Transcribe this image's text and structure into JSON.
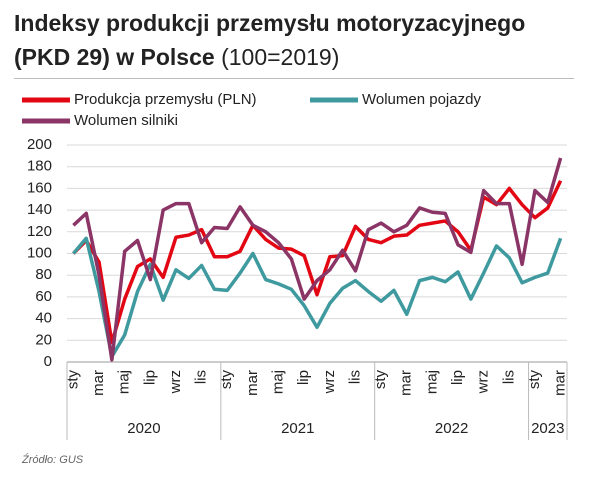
{
  "chart_data": {
    "type": "line",
    "title": "Indeksy produkcji przemysłu motoryzacyjnego (PKD 29) w Polsce",
    "title_note": "(100=2019)",
    "source": "Źródło: GUS",
    "categories": [
      "sty",
      null,
      "mar",
      null,
      "maj",
      null,
      "lip",
      null,
      "wrz",
      null,
      "lis",
      null,
      "sty",
      null,
      "mar",
      null,
      "maj",
      null,
      "lip",
      null,
      "wrz",
      null,
      "lis",
      null,
      "sty",
      null,
      "mar",
      null,
      "maj",
      null,
      "lip",
      null,
      "wrz",
      null,
      "lis",
      null,
      "sty",
      null,
      "mar"
    ],
    "years": [
      "2020",
      "2021",
      "2022",
      "2023"
    ],
    "ylim": [
      0,
      200
    ],
    "yticks": [
      0,
      20,
      40,
      60,
      80,
      100,
      120,
      140,
      160,
      180,
      200
    ],
    "grid": true,
    "series": [
      {
        "name": "Produkcja przemysłu (PLN)",
        "color": "#e30613",
        "values": [
          100,
          112,
          92,
          18,
          58,
          88,
          95,
          78,
          115,
          117,
          122,
          97,
          97,
          102,
          126,
          113,
          105,
          104,
          98,
          62,
          97,
          98,
          125,
          113,
          110,
          116,
          117,
          126,
          128,
          130,
          120,
          103,
          152,
          145,
          160,
          145,
          133,
          142,
          167
        ]
      },
      {
        "name": "Wolumen pojazdy",
        "color": "#3f9a9f",
        "values": [
          100,
          114,
          65,
          5,
          25,
          65,
          90,
          57,
          85,
          77,
          89,
          67,
          66,
          82,
          100,
          76,
          72,
          67,
          52,
          32,
          54,
          68,
          75,
          65,
          56,
          66,
          44,
          75,
          78,
          74,
          83,
          58,
          82,
          107,
          96,
          73,
          78,
          82,
          114
        ]
      },
      {
        "name": "Wolumen silniki",
        "color": "#8b3466",
        "values": [
          126,
          137,
          80,
          2,
          102,
          112,
          76,
          140,
          146,
          146,
          110,
          124,
          123,
          143,
          126,
          120,
          110,
          95,
          58,
          75,
          85,
          103,
          84,
          122,
          128,
          120,
          126,
          142,
          138,
          137,
          108,
          101,
          158,
          146,
          146,
          90,
          158,
          147,
          188
        ]
      }
    ]
  }
}
